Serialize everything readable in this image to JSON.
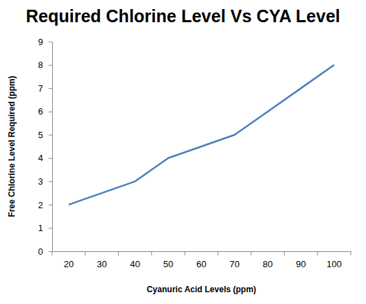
{
  "chart_data": {
    "type": "line",
    "title": "Required Chlorine Level Vs CYA Level",
    "x_label": "Cyanuric Acid Levels (ppm)",
    "y_label": "Free Chlorine Level Required (ppm)",
    "categories": [
      "20",
      "30",
      "40",
      "50",
      "60",
      "70",
      "80",
      "90",
      "100"
    ],
    "values": [
      2,
      2.5,
      3,
      4,
      4.5,
      5,
      6,
      7,
      8
    ],
    "color": "#4a7ebb",
    "ylim": [
      0,
      9
    ],
    "yticks": [
      0,
      1,
      2,
      3,
      4,
      5,
      6,
      7,
      8,
      9
    ],
    "grid": false
  }
}
